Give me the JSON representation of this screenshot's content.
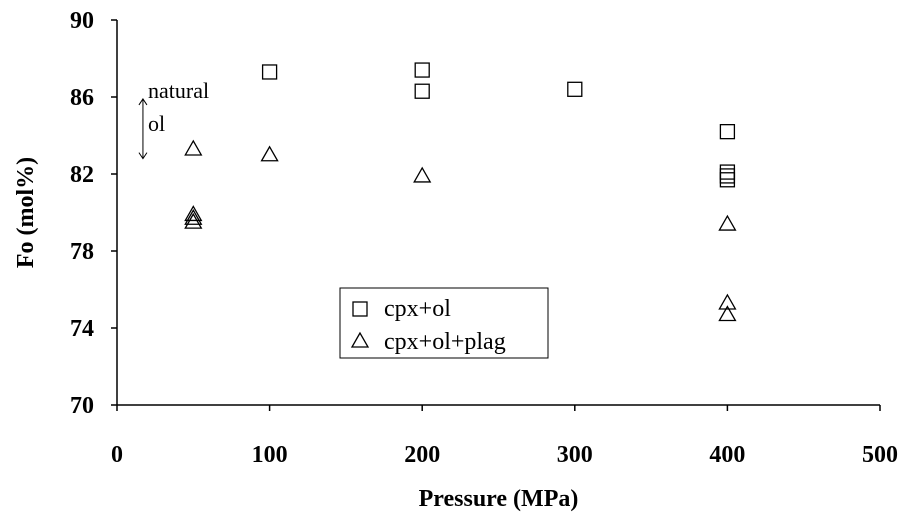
{
  "chart_data": {
    "type": "scatter",
    "title": "",
    "xlabel": "Pressure (MPa)",
    "ylabel": "Fo (mol%)",
    "xlim": [
      0,
      500
    ],
    "ylim": [
      70,
      90
    ],
    "x_ticks": [
      0,
      100,
      200,
      300,
      400,
      500
    ],
    "y_ticks": [
      70,
      74,
      78,
      82,
      86,
      90
    ],
    "grid": false,
    "legend_position": "bottom-center",
    "series": [
      {
        "name": "cpx+ol",
        "marker": "square",
        "points": [
          {
            "x": 100,
            "y": 87.3
          },
          {
            "x": 200,
            "y": 87.4
          },
          {
            "x": 200,
            "y": 86.3
          },
          {
            "x": 300,
            "y": 86.4
          },
          {
            "x": 400,
            "y": 84.2
          },
          {
            "x": 400,
            "y": 82.1
          },
          {
            "x": 400,
            "y": 81.9
          },
          {
            "x": 400,
            "y": 81.7
          }
        ]
      },
      {
        "name": "cpx+ol+plag",
        "marker": "triangle",
        "points": [
          {
            "x": 50,
            "y": 83.3
          },
          {
            "x": 50,
            "y": 79.9
          },
          {
            "x": 50,
            "y": 79.7
          },
          {
            "x": 50,
            "y": 79.5
          },
          {
            "x": 100,
            "y": 83.0
          },
          {
            "x": 200,
            "y": 81.9
          },
          {
            "x": 400,
            "y": 79.4
          },
          {
            "x": 400,
            "y": 75.3
          },
          {
            "x": 400,
            "y": 74.7
          }
        ]
      }
    ],
    "annotation": {
      "lines": [
        "natural",
        "ol"
      ],
      "arrow_from_y": 85.9,
      "arrow_to_y": 82.8,
      "arrow_x": 17
    }
  }
}
